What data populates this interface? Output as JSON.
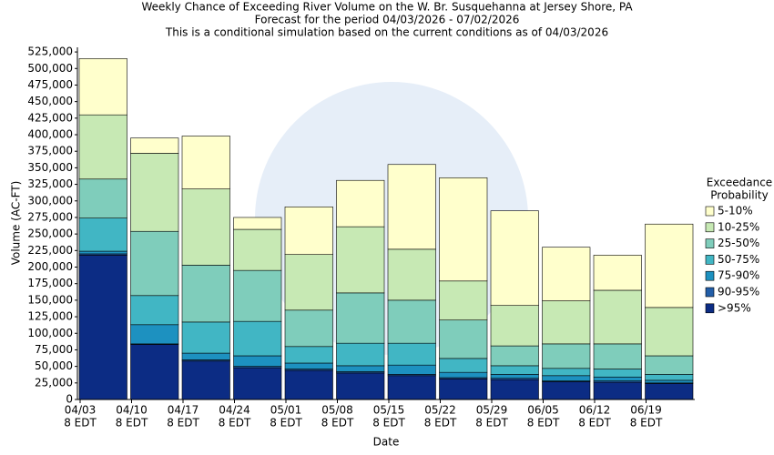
{
  "chart_data": {
    "type": "stacked_bar",
    "title": "Weekly Chance of Exceeding River Volume on the W. Br. Susquehanna at Jersey Shore, PA",
    "subtitle": [
      "Forecast for the period 04/03/2026 - 07/02/2026",
      "This is a conditional simulation based on the current conditions as of 04/03/2026"
    ],
    "x_label": "Date",
    "y_label": "Volume (AC-FT)",
    "categories": [
      "04/03",
      "04/10",
      "04/17",
      "04/24",
      "05/01",
      "05/08",
      "05/15",
      "05/22",
      "05/29",
      "06/05",
      "06/12",
      "06/19"
    ],
    "category_sublabel": "8 EDT",
    "legend_title": [
      "Exceedance",
      "Probability"
    ],
    "series": [
      {
        "name": ">95%",
        "color": "#0c2c84",
        "values": [
          218000,
          83000,
          58000,
          48000,
          44000,
          40000,
          36000,
          31000,
          30000,
          27000,
          26000,
          24000
        ]
      },
      {
        "name": "90-95%",
        "color": "#225ea8",
        "values": [
          2000,
          1000,
          2000,
          2000,
          2000,
          2000,
          2000,
          2000,
          2000,
          1000,
          2000,
          1000
        ]
      },
      {
        "name": "75-90%",
        "color": "#1d91c0",
        "values": [
          4000,
          29000,
          10000,
          16000,
          9000,
          9000,
          14000,
          8000,
          6000,
          8000,
          6000,
          4000
        ]
      },
      {
        "name": "50-75%",
        "color": "#41b6c4",
        "values": [
          50000,
          44000,
          47000,
          52000,
          25000,
          34000,
          33000,
          21000,
          13000,
          11000,
          12000,
          9000
        ]
      },
      {
        "name": "25-50%",
        "color": "#7fcdbb",
        "values": [
          59000,
          97000,
          86000,
          77000,
          55000,
          76000,
          65000,
          58000,
          30000,
          37000,
          38000,
          28000
        ]
      },
      {
        "name": "10-25%",
        "color": "#c7e9b4",
        "values": [
          97000,
          118000,
          115000,
          62000,
          84000,
          100000,
          77000,
          59000,
          61000,
          65000,
          81000,
          73000
        ]
      },
      {
        "name": "5-10%",
        "color": "#ffffcc",
        "values": [
          85000,
          23000,
          80000,
          18000,
          72000,
          70000,
          128000,
          156000,
          143000,
          81000,
          53000,
          126000
        ]
      }
    ],
    "ylim": [
      0,
      532000
    ],
    "yticks": [
      0,
      {
        "value": 25000,
        "label": "25,000"
      },
      {
        "value": 50000,
        "label": "50,000"
      },
      {
        "value": 75000,
        "label": "75,000"
      },
      {
        "value": 100000,
        "label": "100,000"
      },
      {
        "value": 125000,
        "label": "125,000"
      },
      {
        "value": 150000,
        "label": "150,000"
      },
      {
        "value": 175000,
        "label": "175,000"
      },
      {
        "value": 200000,
        "label": "200,000"
      },
      {
        "value": 225000,
        "label": "225,000"
      },
      {
        "value": 250000,
        "label": "250,000"
      },
      {
        "value": 275000,
        "label": "275,000"
      },
      {
        "value": 300000,
        "label": "300,000"
      },
      {
        "value": 325000,
        "label": "325,000"
      },
      {
        "value": 350000,
        "label": "350,000"
      },
      {
        "value": 375000,
        "label": "375,000"
      },
      {
        "value": 400000,
        "label": "400,000"
      },
      {
        "value": 425000,
        "label": "425,000"
      },
      {
        "value": 450000,
        "label": "450,000"
      },
      {
        "value": 475000,
        "label": "475,000"
      },
      {
        "value": 500000,
        "label": "500,000"
      },
      {
        "value": 525000,
        "label": "525,000"
      }
    ],
    "grid": false
  }
}
